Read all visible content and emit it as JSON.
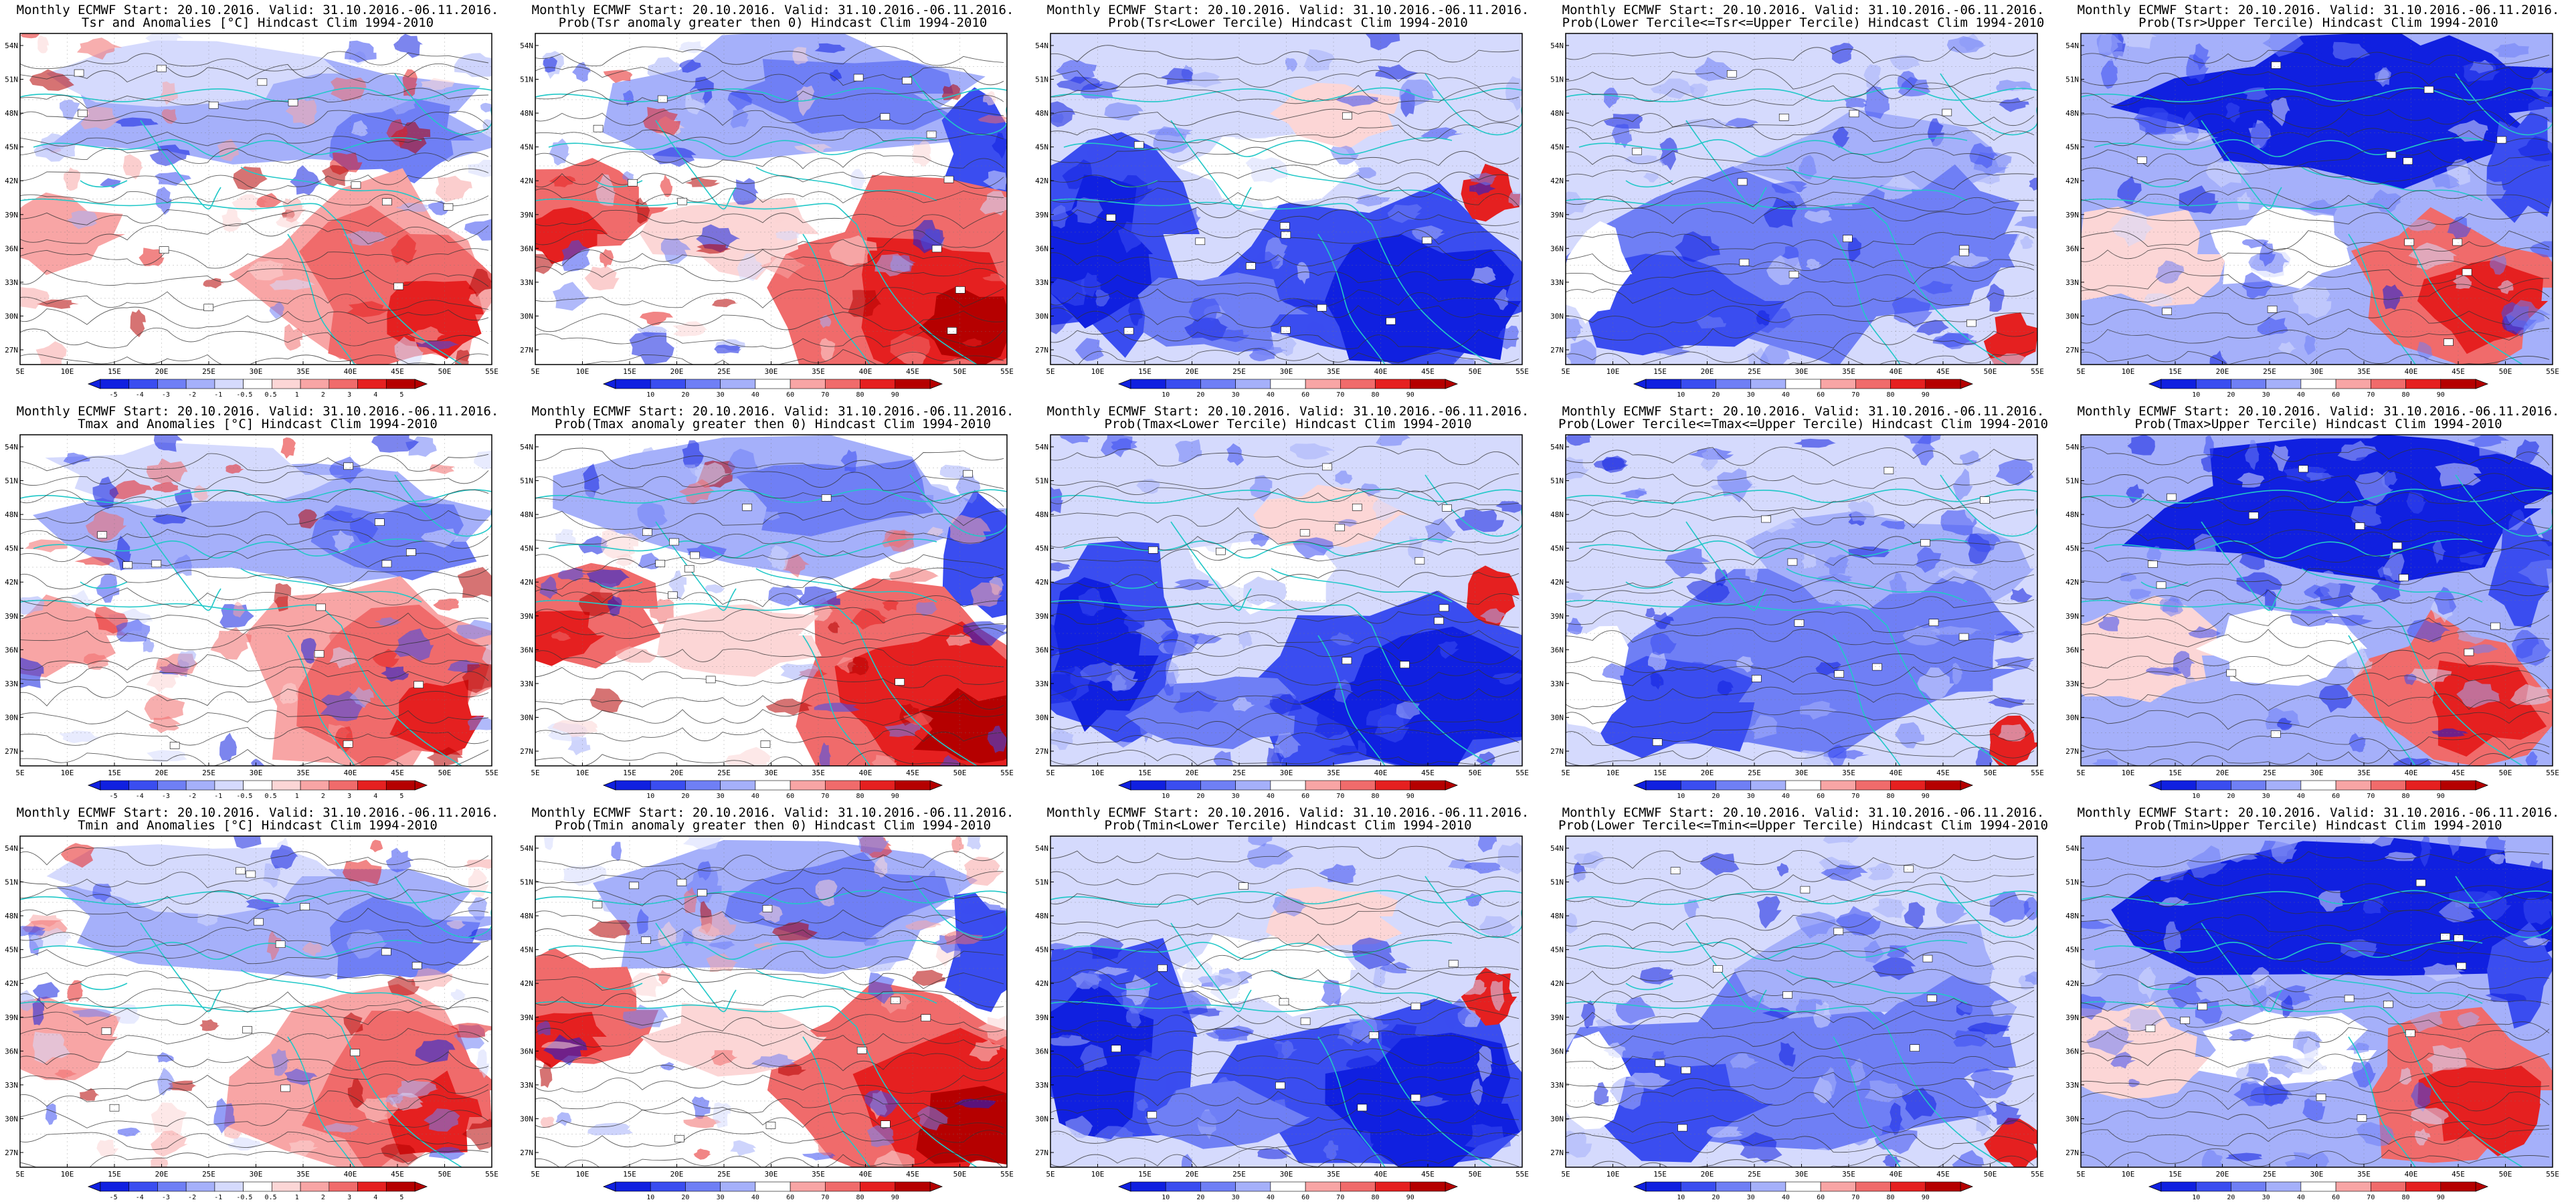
{
  "header_line": "Monthly ECMWF Start: 20.10.2016. Valid: 31.10.2016.-06.11.2016.",
  "subtitles": [
    [
      "Tsr and Anomalies [°C] Hindcast Clim 1994-2010",
      "Prob(Tsr anomaly greater then 0) Hindcast Clim 1994-2010",
      "Prob(Tsr<Lower Tercile) Hindcast Clim 1994-2010",
      "Prob(Lower Tercile<=Tsr<=Upper Tercile) Hindcast Clim 1994-2010",
      "Prob(Tsr>Upper Tercile) Hindcast Clim 1994-2010"
    ],
    [
      "Tmax and Anomalies [°C] Hindcast Clim 1994-2010",
      "Prob(Tmax anomaly greater then 0) Hindcast Clim 1994-2010",
      "Prob(Tmax<Lower Tercile) Hindcast Clim 1994-2010",
      "Prob(Lower Tercile<=Tmax<=Upper Tercile) Hindcast Clim 1994-2010",
      "Prob(Tmax>Upper Tercile) Hindcast Clim 1994-2010"
    ],
    [
      "Tmin and Anomalies [°C] Hindcast Clim 1994-2010",
      "Prob(Tmin anomaly greater then 0) Hindcast Clim 1994-2010",
      "Prob(Tmin<Lower Tercile) Hindcast Clim 1994-2010",
      "Prob(Lower Tercile<=Tmin<=Upper Tercile) Hindcast Clim 1994-2010",
      "Prob(Tmin>Upper Tercile) Hindcast Clim 1994-2010"
    ]
  ],
  "lat_labels": [
    "54N",
    "51N",
    "48N",
    "45N",
    "42N",
    "39N",
    "36N",
    "33N",
    "30N",
    "27N"
  ],
  "lon_labels": [
    "5E",
    "10E",
    "15E",
    "20E",
    "25E",
    "30E",
    "35E",
    "40E",
    "45E",
    "50E",
    "55E"
  ],
  "colorbar_anomaly": [
    "-5",
    "-4",
    "-3",
    "-2",
    "-1",
    "-0.5",
    "0.5",
    "1",
    "2",
    "3",
    "4",
    "5"
  ],
  "colorbar_prob": [
    "10",
    "20",
    "30",
    "40",
    "60",
    "70",
    "80",
    "90"
  ],
  "colors": {
    "blue_shades": [
      "#1020e0",
      "#3a4df0",
      "#6f7ff5",
      "#a5b0fa",
      "#d5dafd"
    ],
    "red_shades": [
      "#fcd6d6",
      "#f8a5a5",
      "#f06b6b",
      "#e52020",
      "#b50000"
    ],
    "coast": "#22c8c8",
    "contour": "#333333"
  },
  "map_scheme": [
    [
      "anom",
      "pos",
      "low",
      "mid",
      "high"
    ],
    [
      "anom",
      "pos",
      "low",
      "mid",
      "high"
    ],
    [
      "anom",
      "pos",
      "low",
      "mid",
      "high"
    ]
  ],
  "colorbar_kind": [
    [
      "anom",
      "prob",
      "prob",
      "prob",
      "prob"
    ],
    [
      "anom",
      "prob",
      "prob",
      "prob",
      "prob"
    ],
    [
      "anom",
      "prob",
      "prob",
      "prob",
      "prob"
    ]
  ]
}
